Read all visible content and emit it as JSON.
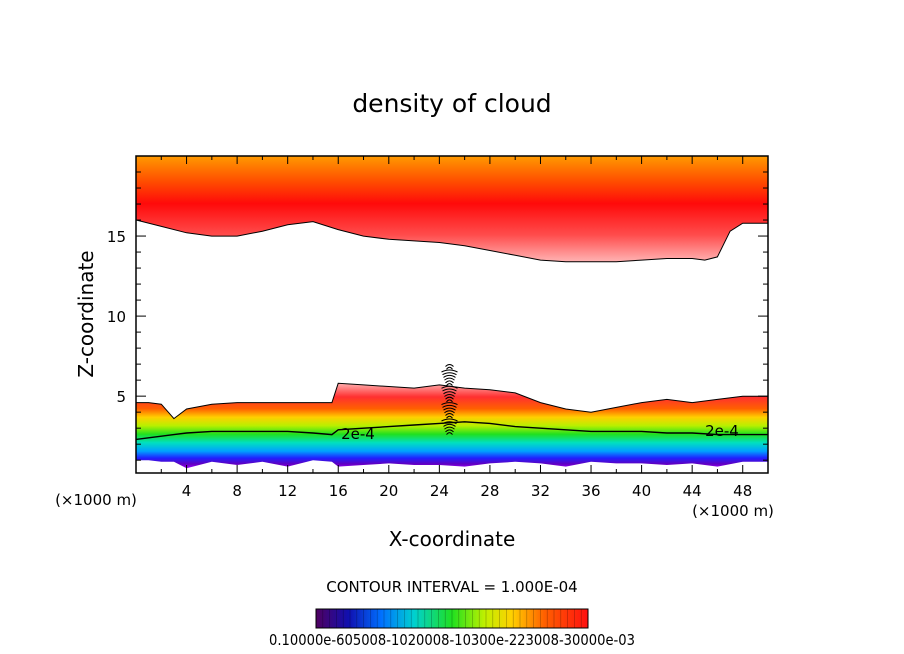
{
  "chart_data": {
    "type": "heatmap",
    "title": "density of cloud",
    "xlabel": "X-coordinate",
    "ylabel": "Z-coordinate",
    "x_unit_left": "(×1000 m)",
    "x_unit_right": "(×1000 m)",
    "xlim": [
      0,
      50
    ],
    "ylim": [
      0.2,
      20
    ],
    "x_ticks": [
      4,
      8,
      12,
      16,
      20,
      24,
      28,
      32,
      36,
      40,
      44,
      48
    ],
    "x_tick_labels": [
      "4",
      "8",
      "12",
      "16",
      "20",
      "24",
      "28",
      "32",
      "36",
      "40",
      "44",
      "48"
    ],
    "y_ticks": [
      5,
      10,
      15
    ],
    "y_tick_labels": [
      "5",
      "10",
      "15"
    ],
    "contour_label": "2e-4",
    "contour_interval_text": "CONTOUR INTERVAL = 1.000E-04",
    "colorbar_label_text": "0.10000e-605008-1020008-10300e-223008-30000e-03",
    "colorbar_range": [
      0.0001,
      0.0003
    ],
    "grid": false,
    "legend": "colorbar-bottom",
    "upper_band": {
      "x": [
        0,
        2,
        4,
        6,
        8,
        10,
        12,
        14,
        16,
        18,
        20,
        22,
        24,
        26,
        28,
        30,
        32,
        34,
        36,
        38,
        40,
        42,
        44,
        45,
        46,
        47,
        48,
        50
      ],
      "bottom_z": [
        16.0,
        15.6,
        15.2,
        15.0,
        15.0,
        15.3,
        15.7,
        15.9,
        15.4,
        15.0,
        14.8,
        14.7,
        14.6,
        14.4,
        14.1,
        13.8,
        13.5,
        13.4,
        13.4,
        13.4,
        13.5,
        13.6,
        13.6,
        13.5,
        13.7,
        15.3,
        15.8,
        15.8
      ],
      "top_z": 20
    },
    "lower_band": {
      "x": [
        0,
        1,
        2,
        3,
        4,
        6,
        8,
        10,
        12,
        14,
        15.5,
        16,
        18,
        20,
        22,
        24,
        26,
        28,
        30,
        32,
        34,
        36,
        38,
        40,
        42,
        44,
        46,
        48,
        50
      ],
      "top_z": [
        4.6,
        4.6,
        4.5,
        3.6,
        4.2,
        4.5,
        4.6,
        4.6,
        4.6,
        4.6,
        4.6,
        5.8,
        5.7,
        5.6,
        5.5,
        5.7,
        5.5,
        5.4,
        5.2,
        4.6,
        4.2,
        4.0,
        4.3,
        4.6,
        4.8,
        4.6,
        4.8,
        5.0,
        5.0
      ],
      "contour_2e4_z": [
        2.3,
        2.4,
        2.5,
        2.6,
        2.7,
        2.8,
        2.8,
        2.8,
        2.8,
        2.7,
        2.6,
        2.9,
        3.0,
        3.1,
        3.2,
        3.3,
        3.4,
        3.3,
        3.1,
        3.0,
        2.9,
        2.8,
        2.8,
        2.8,
        2.7,
        2.7,
        2.6,
        2.6,
        2.6
      ],
      "bottom_z": [
        1.0,
        1.0,
        0.9,
        0.9,
        0.5,
        0.9,
        0.7,
        0.9,
        0.6,
        1.0,
        0.9,
        0.6,
        0.7,
        0.8,
        0.7,
        0.7,
        0.6,
        0.8,
        0.9,
        0.8,
        0.6,
        0.9,
        0.8,
        0.8,
        0.7,
        0.8,
        0.6,
        0.9,
        0.9
      ]
    }
  }
}
